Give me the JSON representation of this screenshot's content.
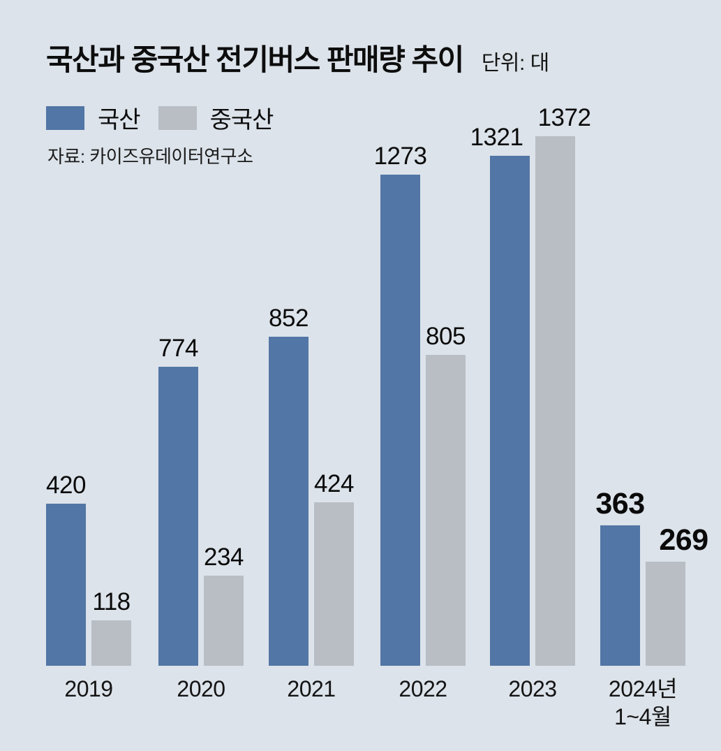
{
  "header": {
    "title": "국산과 중국산 전기버스 판매량 추이",
    "unit": "단위: 대"
  },
  "legend": [
    {
      "label": "국산",
      "color": "#5276a5"
    },
    {
      "label": "중국산",
      "color": "#b9bec4"
    }
  ],
  "source": "자료: 카이즈유데이터연구소",
  "colors": {
    "background": "#dce3ea",
    "domestic_bar": "#5276a5",
    "chinese_bar": "#b9bec4",
    "text": "#0d0d0d"
  },
  "chart_data": {
    "type": "bar",
    "title": "국산과 중국산 전기버스 판매량 추이",
    "unit": "대",
    "categories": [
      "2019",
      "2020",
      "2021",
      "2022",
      "2023",
      "2024년\n1~4월"
    ],
    "series": [
      {
        "name": "국산",
        "color": "#5276a5",
        "values": [
          420,
          774,
          852,
          1273,
          1321,
          363
        ]
      },
      {
        "name": "중국산",
        "color": "#b9bec4",
        "values": [
          118,
          234,
          424,
          805,
          1372,
          269
        ]
      }
    ],
    "ylim": [
      0,
      1372
    ],
    "grid": false,
    "legend_position": "top-left",
    "value_labels": "above-bars",
    "emphasized_index": 5
  }
}
